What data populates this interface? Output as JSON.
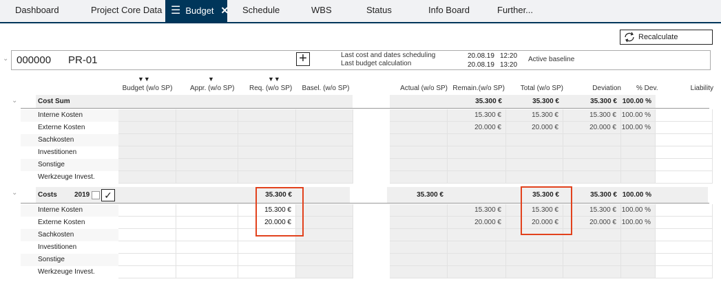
{
  "tabs": [
    {
      "label": "Dashboard"
    },
    {
      "label": "Project Core Data"
    },
    {
      "label": "Budget",
      "active": true
    },
    {
      "label": "Schedule"
    },
    {
      "label": "WBS"
    },
    {
      "label": "Status"
    },
    {
      "label": "Info Board"
    },
    {
      "label": "Further..."
    }
  ],
  "toolbar": {
    "recalculate": "Recalculate"
  },
  "project": {
    "number": "000000",
    "name": "PR-01",
    "last_sched_label": "Last cost and dates scheduling",
    "last_sched_date": "20.08.19",
    "last_sched_time": "12:20",
    "last_calc_label": "Last budget calculation",
    "last_calc_date": "20.08.19",
    "last_calc_time": "13:20",
    "baseline": "Active baseline"
  },
  "columns": [
    "Budget (w/o SP)",
    "Appr. (w/o SP)",
    "Req. (w/o SP)",
    "Basel. (w/o SP)",
    "Actual (w/o SP)",
    "Remain.(w/o SP)",
    "Total (w/o SP)",
    "Deviation",
    "% Dev.",
    "Liability"
  ],
  "sections": [
    {
      "title": "Cost Sum",
      "year": "",
      "summary": {
        "req": "",
        "remain": "35.300 €",
        "total": "35.300 €",
        "deviation": "35.300 €",
        "pct": "100.00 %",
        "actual": ""
      },
      "rows": [
        {
          "label": "Interne Kosten",
          "req": "",
          "remain": "15.300 €",
          "total": "15.300 €",
          "deviation": "15.300 €",
          "pct": "100.00 %"
        },
        {
          "label": "Externe Kosten",
          "req": "",
          "remain": "20.000 €",
          "total": "20.000 €",
          "deviation": "20.000 €",
          "pct": "100.00 %"
        },
        {
          "label": "Sachkosten"
        },
        {
          "label": "Investitionen"
        },
        {
          "label": "Sonstige"
        },
        {
          "label": "Werkzeuge Invest."
        }
      ]
    },
    {
      "title": "Costs",
      "year": "2019",
      "summary": {
        "req": "35.300 €",
        "actual": "35.300 €",
        "remain": "",
        "total": "35.300 €",
        "deviation": "35.300 €",
        "pct": "100.00 %"
      },
      "rows": [
        {
          "label": "Interne Kosten",
          "req": "15.300 €",
          "remain": "15.300 €",
          "total": "15.300 €",
          "deviation": "15.300 €",
          "pct": "100.00 %"
        },
        {
          "label": "Externe Kosten",
          "req": "20.000 €",
          "remain": "20.000 €",
          "total": "20.000 €",
          "deviation": "20.000 €",
          "pct": "100.00 %"
        },
        {
          "label": "Sachkosten"
        },
        {
          "label": "Investitionen"
        },
        {
          "label": "Sonstige"
        },
        {
          "label": "Werkzeuge Invest."
        }
      ]
    }
  ],
  "colors": {
    "tab_active": "#00365a",
    "highlight": "#e2411c"
  }
}
